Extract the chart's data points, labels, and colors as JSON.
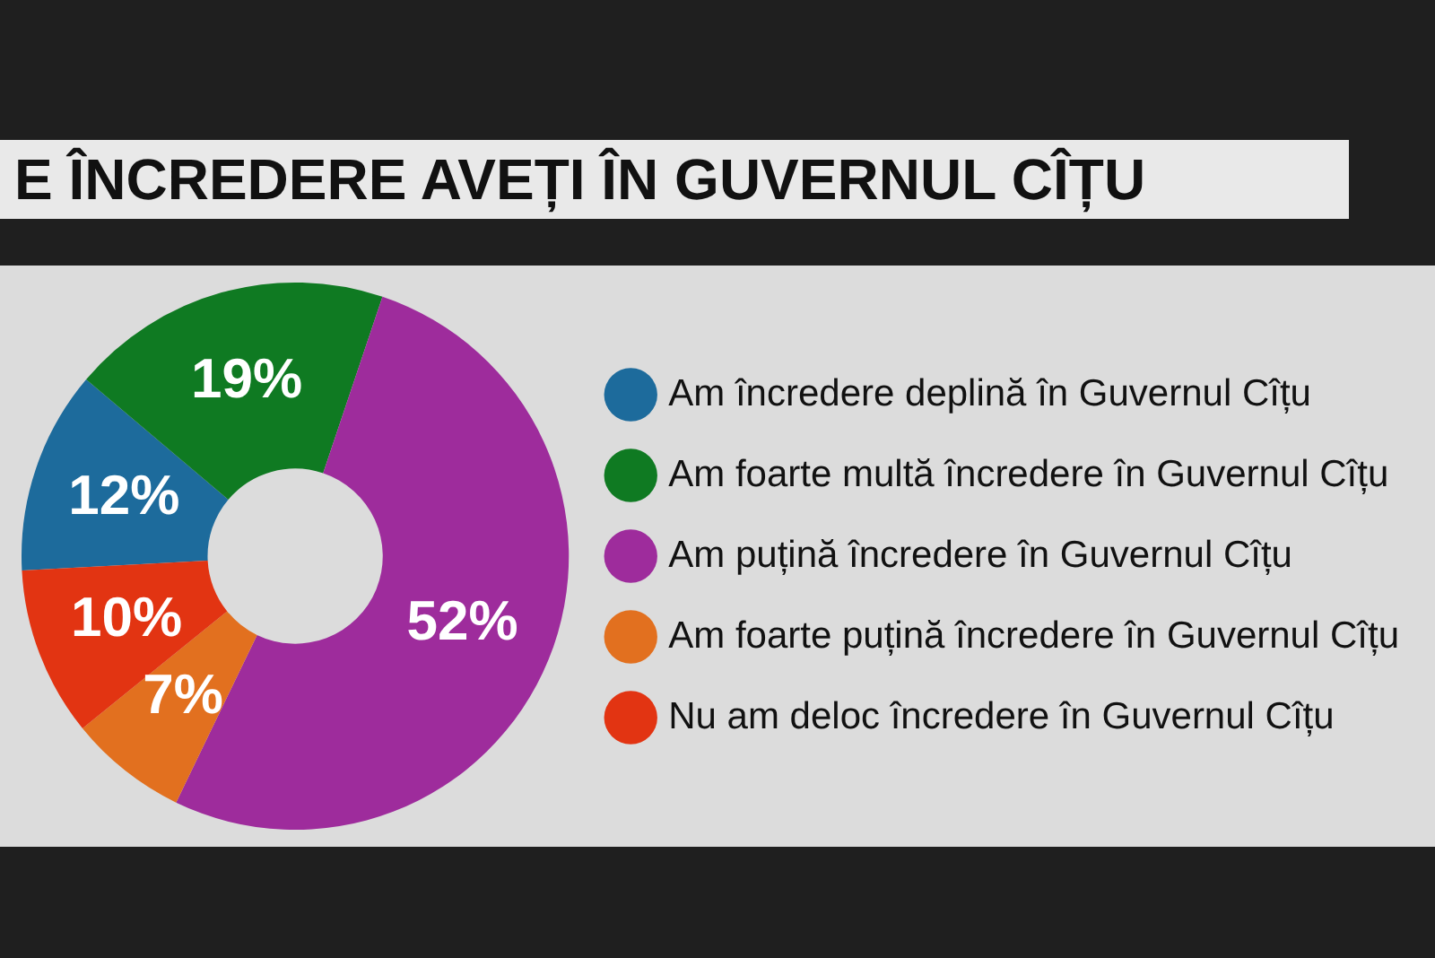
{
  "chart_data": {
    "type": "donut",
    "title": "E ÎNCREDERE AVEȚI ÎN GUVERNUL CÎȚU",
    "categories": [
      "Am încredere deplină în Guvernul Cîțu",
      "Am foarte multă încredere în Guvernul Cîțu",
      "Am puțină încredere în Guvernul Cîțu",
      "Am foarte puțină încredere în Guvernul Cîțu",
      "Nu am deloc încredere în Guvernul Cîțu"
    ],
    "values": [
      12,
      19,
      52,
      7,
      10
    ],
    "colors": [
      "#1d6b9c",
      "#0f7a22",
      "#9e2c9c",
      "#e2701f",
      "#e23412"
    ],
    "value_labels": [
      "12%",
      "19%",
      "52%",
      "7%",
      "10%"
    ],
    "legend": "right"
  }
}
